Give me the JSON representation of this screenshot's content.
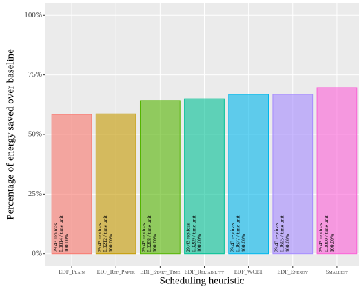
{
  "chart_data": {
    "type": "bar",
    "categories": [
      "EDF_Plain",
      "EDF_Ref_Paper",
      "EDF_Start_Time",
      "EDF_Reliability",
      "EDF_WCET",
      "EDF_Energy",
      "Smallest"
    ],
    "values": [
      58.4,
      58.6,
      64.2,
      65.0,
      66.8,
      66.8,
      69.7
    ],
    "colors": [
      "#F8766D",
      "#C49A00",
      "#53B400",
      "#00C094",
      "#00B6EB",
      "#A58AFF",
      "#FB61D7"
    ],
    "annotations": [
      [
        "29.43 replicas",
        "0.0814 / time unit",
        "100.00%"
      ],
      [
        "29.43 replicas",
        "0.0212 / time unit",
        "100.00%"
      ],
      [
        "29.43 replicas",
        "0.0208 / time unit",
        "100.00%"
      ],
      [
        "29.43 replicas",
        "0.0209 / time unit",
        "100.00%"
      ],
      [
        "29.43 replicas",
        "0.0677 / time unit",
        "100.00%"
      ],
      [
        "29.43 replicas",
        "0.0695 / time unit",
        "100.00%"
      ],
      [
        "29.43 replicas",
        "0.0000 / time unit",
        "100.00%"
      ]
    ],
    "ylim": [
      -5,
      105
    ],
    "yticks": [
      {
        "value": 0,
        "label": "0%"
      },
      {
        "value": 25,
        "label": "25%"
      },
      {
        "value": 50,
        "label": "50%"
      },
      {
        "value": 75,
        "label": "75%"
      },
      {
        "value": 100,
        "label": "100%"
      }
    ],
    "xlabel": "Scheduling heuristic",
    "ylabel": "Percentage of energy saved over baseline",
    "grid": true
  }
}
